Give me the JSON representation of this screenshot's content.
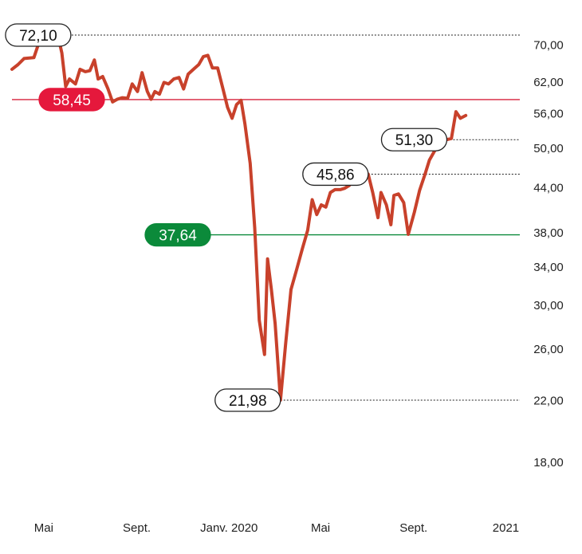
{
  "chart_data": {
    "type": "line",
    "title": "",
    "xlabel": "",
    "ylabel": "",
    "y_scale": "log",
    "ylim": [
      16.5,
      76
    ],
    "y_ticks": [
      {
        "value": 70,
        "label": "70,00"
      },
      {
        "value": 62,
        "label": "62,00"
      },
      {
        "value": 56,
        "label": "56,00"
      },
      {
        "value": 50,
        "label": "50,00"
      },
      {
        "value": 44,
        "label": "44,00"
      },
      {
        "value": 38,
        "label": "38,00"
      },
      {
        "value": 34,
        "label": "34,00"
      },
      {
        "value": 30,
        "label": "30,00"
      },
      {
        "value": 26,
        "label": "26,00"
      },
      {
        "value": 22,
        "label": "22,00"
      },
      {
        "value": 18,
        "label": "18,00"
      }
    ],
    "x_range": [
      "2019-03-20",
      "2021-01-10"
    ],
    "x_ticks": [
      {
        "date": "2019-05-01",
        "label": "Mai"
      },
      {
        "date": "2019-09-01",
        "label": "Sept."
      },
      {
        "date": "2020-01-01",
        "label": "Janv. 2020"
      },
      {
        "date": "2020-05-01",
        "label": "Mai"
      },
      {
        "date": "2020-09-01",
        "label": "Sept."
      },
      {
        "date": "2021-01-01",
        "label": "2021"
      }
    ],
    "grid": false,
    "series": [
      {
        "color": "#c8412b",
        "points": [
          [
            "2019-03-20",
            64.5
          ],
          [
            "2019-03-28",
            65.5
          ],
          [
            "2019-04-05",
            66.8
          ],
          [
            "2019-04-18",
            67.0
          ],
          [
            "2019-04-24",
            70.0
          ],
          [
            "2019-04-30",
            72.1
          ],
          [
            "2019-05-06",
            71.0
          ],
          [
            "2019-05-14",
            71.5
          ],
          [
            "2019-05-20",
            71.8
          ],
          [
            "2019-05-25",
            68.0
          ],
          [
            "2019-05-30",
            61.0
          ],
          [
            "2019-06-04",
            62.5
          ],
          [
            "2019-06-12",
            61.5
          ],
          [
            "2019-06-18",
            64.5
          ],
          [
            "2019-06-25",
            64.0
          ],
          [
            "2019-07-01",
            64.2
          ],
          [
            "2019-07-07",
            66.5
          ],
          [
            "2019-07-12",
            62.5
          ],
          [
            "2019-07-18",
            63.0
          ],
          [
            "2019-07-25",
            60.5
          ],
          [
            "2019-07-31",
            58.0
          ],
          [
            "2019-08-06",
            58.5
          ],
          [
            "2019-08-13",
            58.8
          ],
          [
            "2019-08-20",
            58.7
          ],
          [
            "2019-08-26",
            61.5
          ],
          [
            "2019-09-02",
            60.0
          ],
          [
            "2019-09-08",
            63.8
          ],
          [
            "2019-09-15",
            60.0
          ],
          [
            "2019-09-20",
            58.5
          ],
          [
            "2019-09-25",
            60.0
          ],
          [
            "2019-10-01",
            59.5
          ],
          [
            "2019-10-07",
            61.8
          ],
          [
            "2019-10-13",
            61.5
          ],
          [
            "2019-10-20",
            62.5
          ],
          [
            "2019-10-27",
            62.8
          ],
          [
            "2019-11-02",
            60.5
          ],
          [
            "2019-11-08",
            63.5
          ],
          [
            "2019-11-15",
            64.5
          ],
          [
            "2019-11-22",
            65.5
          ],
          [
            "2019-11-28",
            67.2
          ],
          [
            "2019-12-04",
            67.5
          ],
          [
            "2019-12-10",
            64.8
          ],
          [
            "2019-12-17",
            64.8
          ],
          [
            "2019-12-24",
            60.5
          ],
          [
            "2019-12-30",
            57.0
          ],
          [
            "2020-01-05",
            55.0
          ],
          [
            "2020-01-11",
            57.5
          ],
          [
            "2020-01-17",
            58.3
          ],
          [
            "2020-01-22",
            54.0
          ],
          [
            "2020-01-29",
            47.5
          ],
          [
            "2020-02-04",
            38.5
          ],
          [
            "2020-02-10",
            28.5
          ],
          [
            "2020-02-17",
            25.5
          ],
          [
            "2020-02-21",
            34.8
          ],
          [
            "2020-02-26",
            31.5
          ],
          [
            "2020-03-02",
            28.2
          ],
          [
            "2020-03-09",
            21.98
          ],
          [
            "2020-03-16",
            26.5
          ],
          [
            "2020-03-23",
            31.5
          ],
          [
            "2020-03-30",
            33.5
          ],
          [
            "2020-04-07",
            36.0
          ],
          [
            "2020-04-14",
            38.2
          ],
          [
            "2020-04-20",
            42.2
          ],
          [
            "2020-04-26",
            40.2
          ],
          [
            "2020-05-02",
            41.5
          ],
          [
            "2020-05-08",
            41.2
          ],
          [
            "2020-05-14",
            43.2
          ],
          [
            "2020-05-20",
            43.6
          ],
          [
            "2020-05-27",
            43.6
          ],
          [
            "2020-06-02",
            43.8
          ],
          [
            "2020-06-08",
            44.2
          ],
          [
            "2020-06-14",
            45.2
          ],
          [
            "2020-06-20",
            45.4
          ],
          [
            "2020-06-26",
            44.8
          ],
          [
            "2020-07-03",
            45.86
          ],
          [
            "2020-07-09",
            43.2
          ],
          [
            "2020-07-16",
            39.8
          ],
          [
            "2020-07-20",
            43.2
          ],
          [
            "2020-07-27",
            41.5
          ],
          [
            "2020-08-02",
            38.9
          ],
          [
            "2020-08-06",
            42.8
          ],
          [
            "2020-08-12",
            43.0
          ],
          [
            "2020-08-19",
            41.8
          ],
          [
            "2020-08-25",
            37.7
          ],
          [
            "2020-09-02",
            40.5
          ],
          [
            "2020-09-09",
            43.5
          ],
          [
            "2020-09-16",
            45.8
          ],
          [
            "2020-09-22",
            48.0
          ],
          [
            "2020-09-29",
            49.5
          ],
          [
            "2020-10-04",
            50.0
          ],
          [
            "2020-10-09",
            52.2
          ],
          [
            "2020-10-15",
            51.3
          ],
          [
            "2020-10-21",
            51.5
          ],
          [
            "2020-10-27",
            56.2
          ],
          [
            "2020-11-02",
            55.0
          ],
          [
            "2020-11-09",
            55.5
          ]
        ]
      }
    ],
    "reference_lines": [
      {
        "value": 72.1,
        "label": "72,10",
        "line_color": "#222222",
        "style": "dotted",
        "label_bg": "#ffffff",
        "label_fg": "#111111",
        "label_border": "#222222",
        "label_side": "left",
        "start_date": "2019-04-30"
      },
      {
        "value": 58.45,
        "label": "58,45",
        "line_color": "#d6213c",
        "style": "solid",
        "label_bg": "#e5183c",
        "label_fg": "#ffffff",
        "label_border": "#e5183c",
        "label_side": "left",
        "start_date": "2019-03-20"
      },
      {
        "value": 51.3,
        "label": "51,30",
        "line_color": "#222222",
        "style": "dotted",
        "label_bg": "#ffffff",
        "label_fg": "#111111",
        "label_border": "#222222",
        "label_side": "left",
        "start_date": "2020-10-15"
      },
      {
        "value": 45.86,
        "label": "45,86",
        "line_color": "#222222",
        "style": "dotted",
        "label_bg": "#ffffff",
        "label_fg": "#111111",
        "label_border": "#222222",
        "label_side": "left",
        "start_date": "2020-07-03"
      },
      {
        "value": 37.64,
        "label": "37,64",
        "line_color": "#0b8a3a",
        "style": "solid",
        "label_bg": "#0b8a3a",
        "label_fg": "#ffffff",
        "label_border": "#0b8a3a",
        "label_side": "left",
        "start_date": "2019-09-20"
      },
      {
        "value": 21.98,
        "label": "21,98",
        "line_color": "#222222",
        "style": "dotted",
        "label_bg": "#ffffff",
        "label_fg": "#111111",
        "label_border": "#222222",
        "label_side": "left",
        "start_date": "2020-03-09"
      }
    ]
  }
}
